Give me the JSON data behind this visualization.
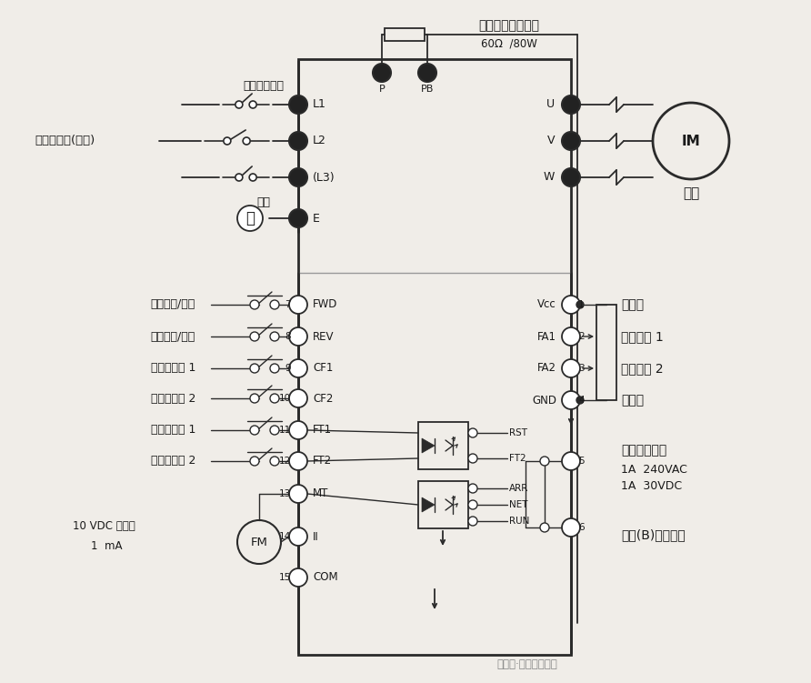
{
  "bg_color": "#f0ede8",
  "lc": "#2a2a2a",
  "tc": "#1a1a1a",
  "fig_w": 8.92,
  "fig_h": 7.51,
  "top_title": "外接型薺車電阻器",
  "top_subtitle": "60Ω  /80W",
  "label_wiring": "配線用斷路器",
  "label_main": "主回路電源(三相)",
  "label_ground": "接地",
  "ctrl_labels": [
    "正轉運轉/停止",
    "反轉運轉/停止",
    "多段速設定 1",
    "多段速設定 2",
    "多機能端子 1",
    "多機能端子 2"
  ],
  "label_10vdc1": "10 VDC 滿刻度",
  "label_10vdc2": "1  mA",
  "label_motor": "馬達",
  "label_pos_power": "正電源",
  "label_ana1": "類比端子 1",
  "label_ana2": "類比端子 2",
  "label_neg_power": "負電源",
  "label_fault_out": "異常接點輸出",
  "label_1a240": "1A  240VAC",
  "label_1a30": "1A  30VDC",
  "label_nc": "常閉(B)接點型式",
  "watermark": "公众号·山东科新教育"
}
